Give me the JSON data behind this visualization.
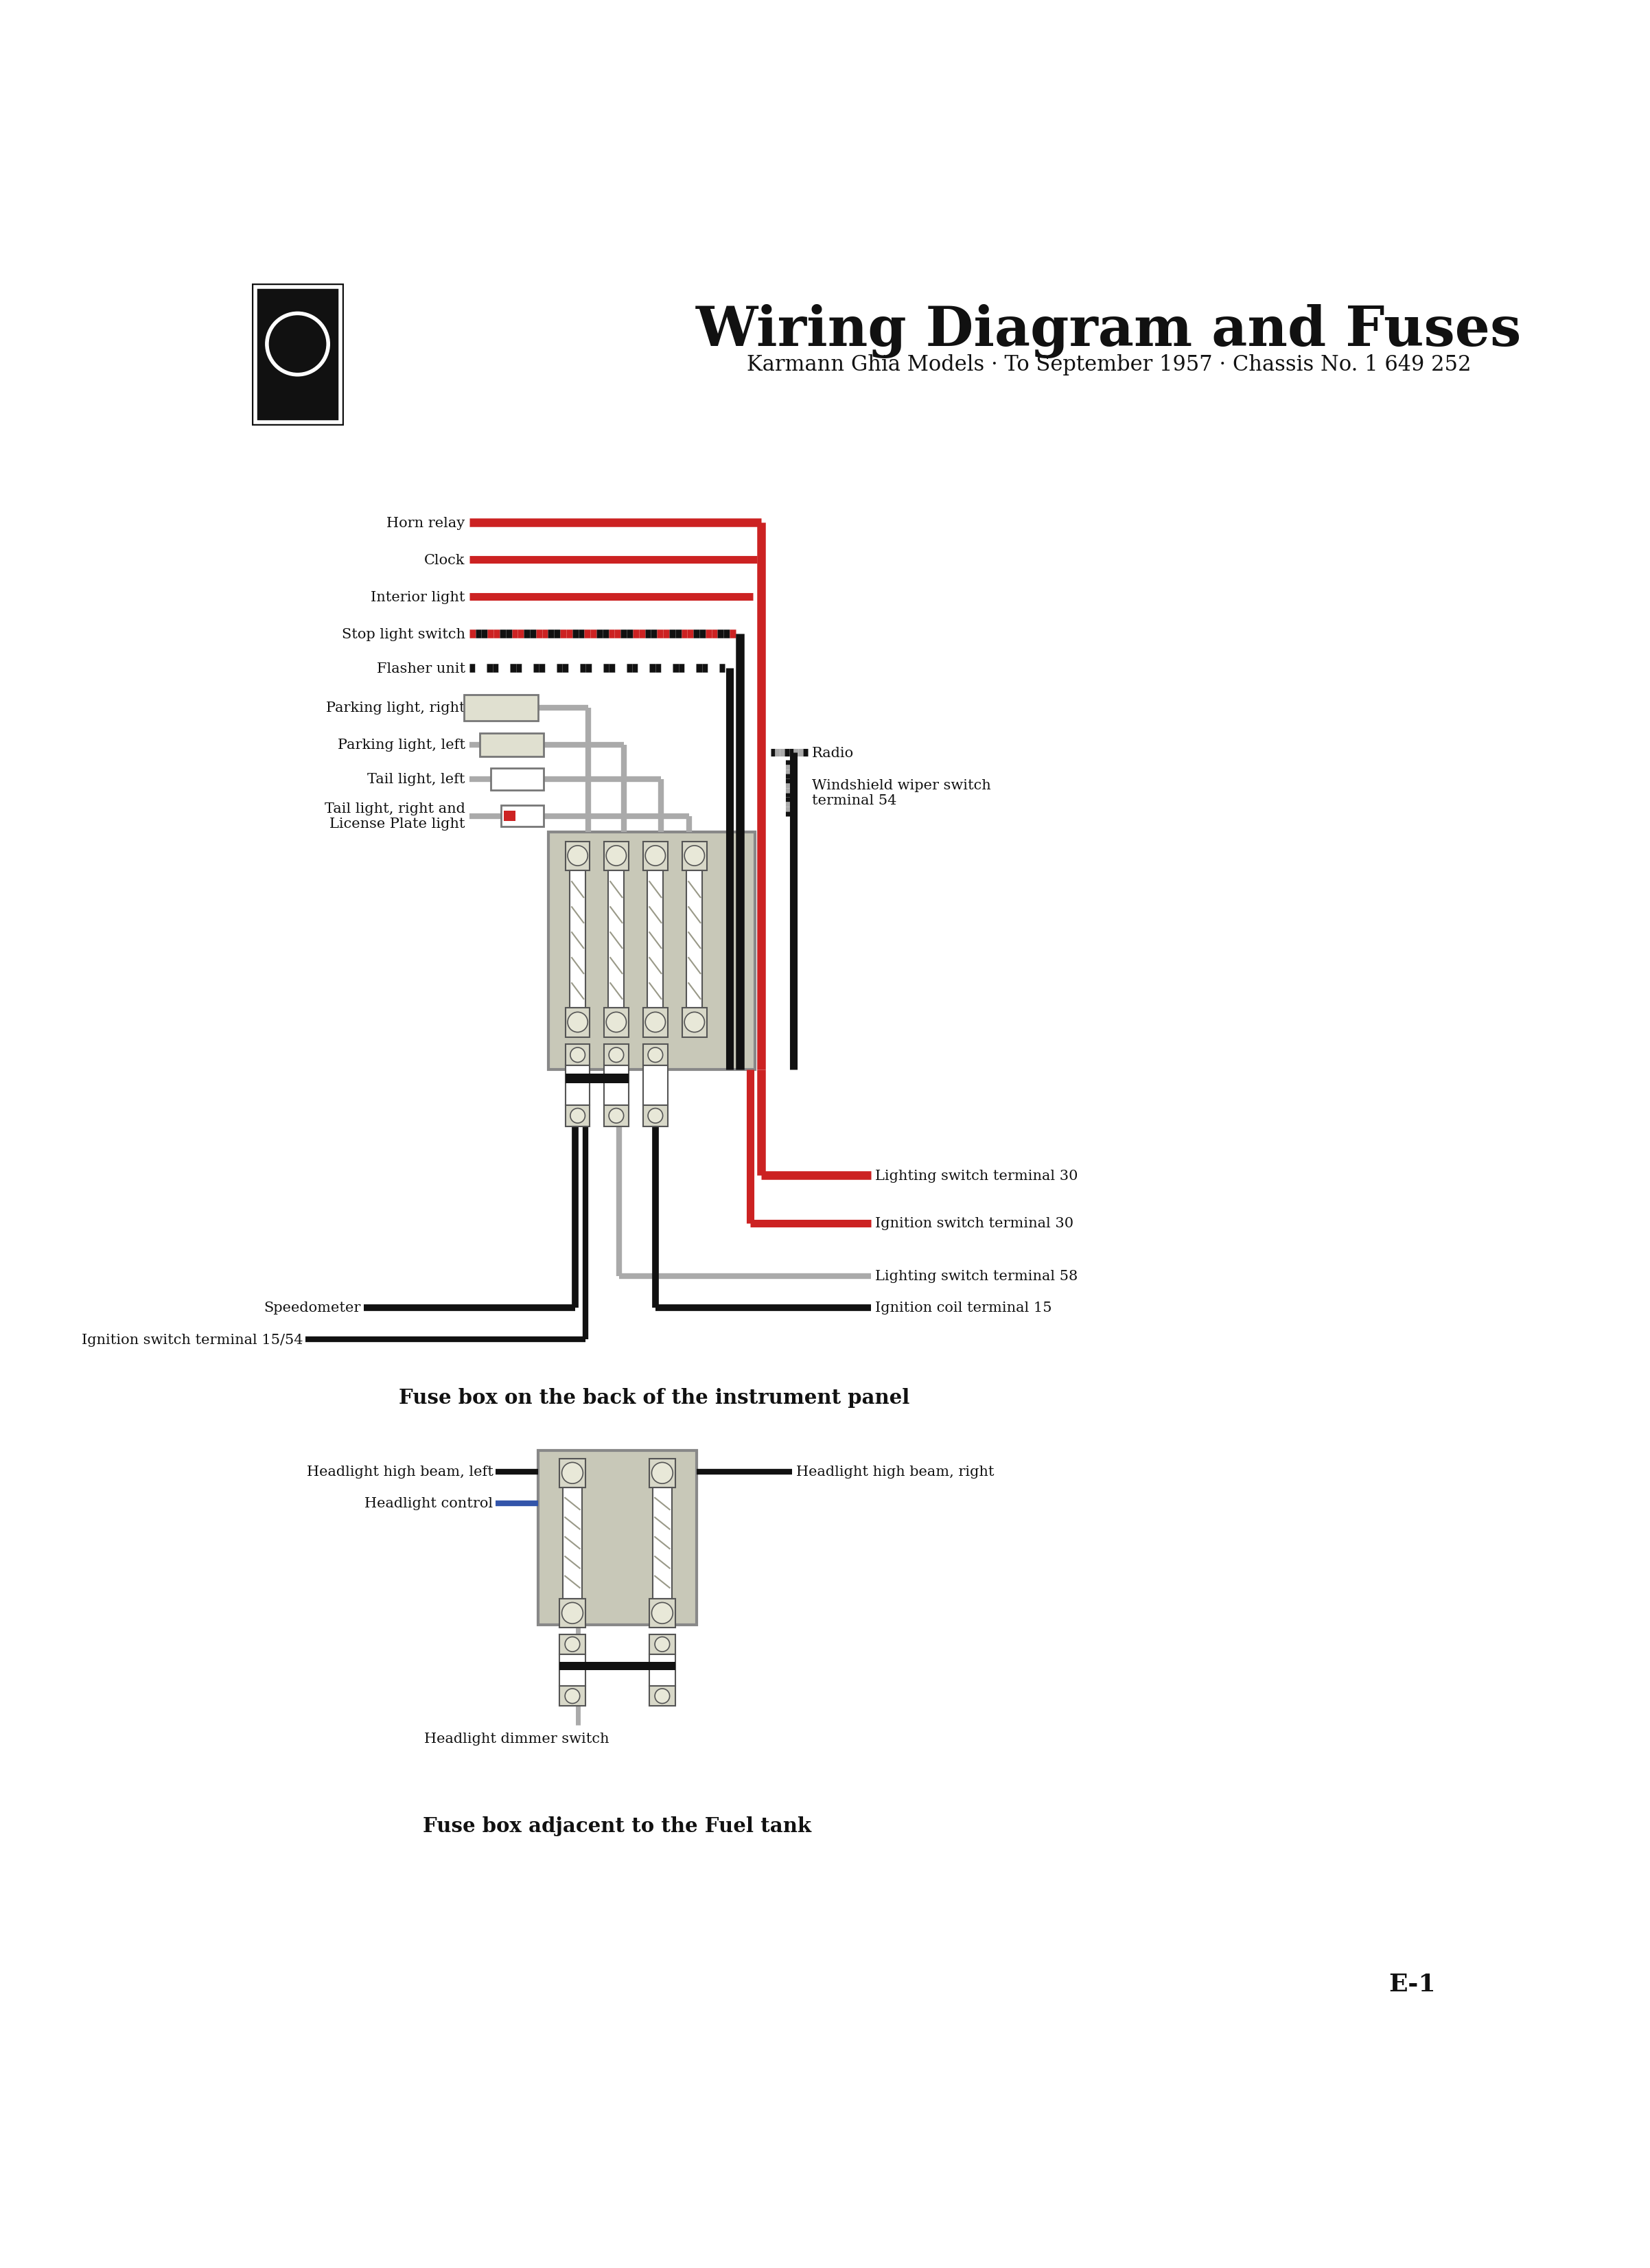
{
  "title": "Wiring Diagram and Fuses",
  "subtitle": "Karmann Ghia Models · To September 1957 · Chassis No. 1 649 252",
  "bg_color": "#FFFFFF",
  "page_label": "E-1",
  "fuse_box1_caption": "Fuse box on the back of the instrument panel",
  "fuse_box2_caption": "Fuse box adjacent to the Fuel tank",
  "red_color": "#CC2222",
  "black_color": "#111111",
  "gray_color": "#AAAAAA",
  "fuse_box_bg": "#C8C8B8",
  "fuse_element_bg": "#E8E8D8",
  "fuse_connector_bg": "#D8D8C8"
}
